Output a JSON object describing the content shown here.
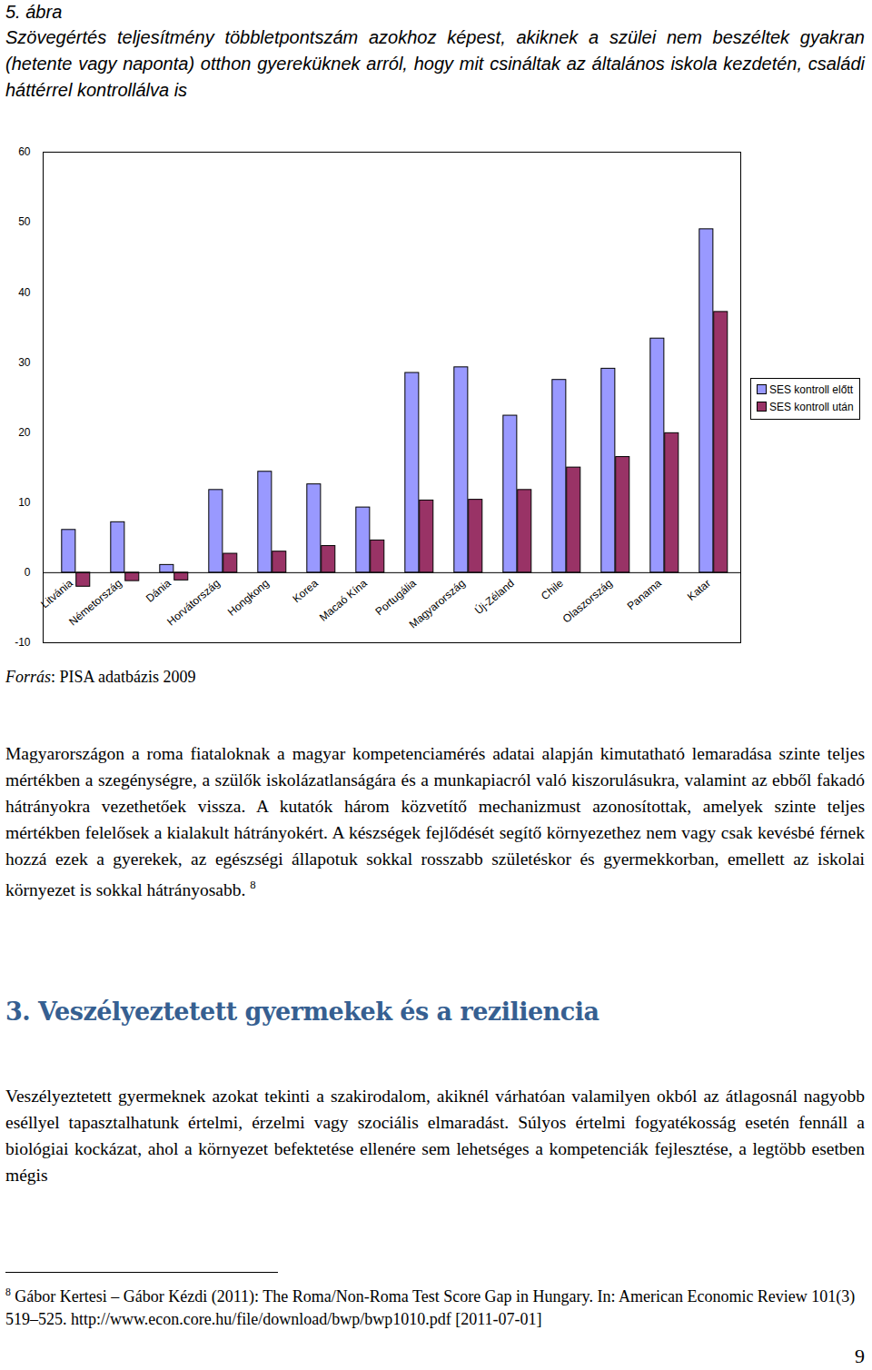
{
  "figure_label": "5. ábra",
  "chart_data": {
    "type": "bar",
    "title": "Szövegértés teljesítmény többletpontszám azokhoz képest, akiknek a szülei nem beszéltek gyakran (hetente vagy naponta) otthon gyereküknek arról, hogy mit csináltak az általános iskola kezdetén, családi háttérrel kontrollálva is",
    "categories": [
      "Litvánia",
      "Németország",
      "Dánia",
      "Horvátország",
      "Hongkong",
      "Korea",
      "Macaó Kína",
      "Portugália",
      "Magyarország",
      "Új-Zéland",
      "Chile",
      "Olaszország",
      "Panama",
      "Katar"
    ],
    "series": [
      {
        "name": "SES kontroll előtt",
        "color": "#9999ff",
        "values": [
          6.1,
          7.2,
          1.1,
          11.8,
          14.4,
          12.6,
          9.3,
          28.5,
          29.3,
          22.4,
          27.5,
          29.1,
          33.4,
          49.0
        ]
      },
      {
        "name": "SES kontroll után",
        "color": "#993366",
        "values": [
          -2.0,
          -1.2,
          -1.1,
          2.7,
          3.0,
          3.8,
          4.6,
          10.3,
          10.4,
          11.8,
          15.0,
          16.5,
          19.9,
          37.2
        ]
      }
    ],
    "ylim": [
      -10,
      60
    ],
    "yticks": [
      -10,
      0,
      10,
      20,
      30,
      40,
      50,
      60
    ],
    "grid": false,
    "legend": "right"
  },
  "source": {
    "label": "Forrás",
    "text": ": PISA adatbázis 2009"
  },
  "paragraph_1": {
    "text": "Magyarországon a roma fiataloknak a magyar kompetenciamérés adatai alapján kimutatható lemaradása szinte teljes mértékben a szegénységre, a szülők iskolázatlanságára és a munkapiacról való kiszorulásukra, valamint az ebből fakadó hátrányokra vezethetőek vissza. A kutatók három közvetítő mechanizmust azonosítottak, amelyek szinte teljes mértékben felelősek a kialakult hátrányokért. A készségek fejlődését segítő környezethez nem vagy csak kevésbé férnek hozzá ezek a gyerekek, az egészségi állapotuk sokkal rosszabb születéskor és gyermekkorban, emellett az iskolai környezet is sokkal hátrányosabb.",
    "footnote_ref": "8"
  },
  "heading": "3. Veszélyeztetett gyermekek és a reziliencia",
  "paragraph_2": {
    "text": "Veszélyeztetett gyermeknek azokat tekinti a szakirodalom, akiknél várhatóan valamilyen okból az átlagosnál nagyobb eséllyel tapasztalhatunk értelmi, érzelmi vagy szociális elmaradást. Súlyos értelmi fogyatékosság esetén fennáll a biológiai kockázat, ahol a környezet befektetése ellenére sem lehetséges a kompetenciák fejlesztése, a legtöbb esetben mégis"
  },
  "footnote": {
    "number": "8",
    "text": "Gábor Kertesi – Gábor Kézdi (2011): The Roma/Non-Roma Test Score Gap in Hungary. In: American Economic Review 101(3) 519–525. http://www.econ.core.hu/file/download/bwp/bwp1010.pdf [2011-07-01]"
  },
  "page_number": "9"
}
